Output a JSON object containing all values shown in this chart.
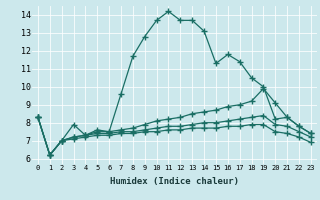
{
  "xlabel": "Humidex (Indice chaleur)",
  "background_color": "#cce8ec",
  "grid_color": "#b8d8dc",
  "line_color": "#1a6e64",
  "xlim": [
    -0.5,
    23.5
  ],
  "ylim": [
    5.7,
    14.5
  ],
  "xticks": [
    0,
    1,
    2,
    3,
    4,
    5,
    6,
    7,
    8,
    9,
    10,
    11,
    12,
    13,
    14,
    15,
    16,
    17,
    18,
    19,
    20,
    21,
    22,
    23
  ],
  "yticks": [
    6,
    7,
    8,
    9,
    10,
    11,
    12,
    13,
    14
  ],
  "series": [
    [
      8.3,
      6.2,
      7.0,
      7.9,
      7.3,
      7.6,
      7.5,
      9.6,
      11.7,
      12.8,
      13.7,
      14.2,
      13.7,
      13.7,
      13.1,
      11.3,
      11.8,
      11.4,
      10.5,
      10.0,
      8.2,
      8.3,
      7.8,
      7.4
    ],
    [
      8.3,
      6.2,
      7.0,
      7.2,
      7.3,
      7.5,
      7.5,
      7.6,
      7.7,
      7.9,
      8.1,
      8.2,
      8.3,
      8.5,
      8.6,
      8.7,
      8.9,
      9.0,
      9.2,
      9.9,
      9.1,
      8.3,
      7.8,
      7.4
    ],
    [
      8.3,
      6.2,
      7.0,
      7.2,
      7.3,
      7.4,
      7.4,
      7.5,
      7.5,
      7.6,
      7.7,
      7.8,
      7.8,
      7.9,
      8.0,
      8.0,
      8.1,
      8.2,
      8.3,
      8.4,
      7.9,
      7.8,
      7.5,
      7.2
    ],
    [
      8.3,
      6.2,
      7.0,
      7.1,
      7.2,
      7.3,
      7.3,
      7.4,
      7.4,
      7.5,
      7.5,
      7.6,
      7.6,
      7.7,
      7.7,
      7.7,
      7.8,
      7.8,
      7.9,
      7.9,
      7.5,
      7.4,
      7.2,
      6.9
    ]
  ]
}
